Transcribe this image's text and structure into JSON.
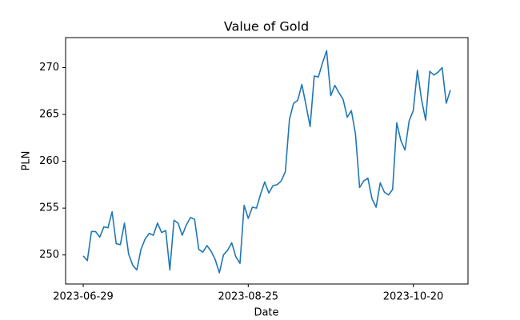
{
  "chart_data": {
    "type": "line",
    "title": "Value of Gold",
    "x_label": "Date",
    "y_label": "PLN",
    "categories": [
      "2023-06-29",
      null,
      null,
      null,
      null,
      null,
      null,
      null,
      null,
      null,
      null,
      null,
      null,
      null,
      null,
      null,
      null,
      null,
      null,
      null,
      null,
      null,
      null,
      null,
      null,
      null,
      null,
      null,
      null,
      null,
      null,
      null,
      null,
      null,
      null,
      null,
      null,
      null,
      null,
      null,
      "2023-08-25",
      null,
      null,
      null,
      null,
      null,
      null,
      null,
      null,
      null,
      null,
      null,
      null,
      null,
      null,
      null,
      null,
      null,
      null,
      null,
      null,
      null,
      null,
      null,
      null,
      null,
      null,
      null,
      null,
      null,
      null,
      null,
      null,
      null,
      null,
      null,
      null,
      null,
      null,
      null,
      "2023-10-20",
      null,
      null,
      null,
      null,
      null,
      null,
      null,
      null,
      null
    ],
    "series": [
      {
        "name": "Value",
        "color": "#1f77b4",
        "values": [
          249.9,
          249.4,
          252.5,
          252.5,
          251.9,
          253.0,
          252.9,
          254.6,
          251.2,
          251.1,
          253.4,
          250.1,
          248.9,
          248.4,
          250.6,
          251.7,
          252.3,
          252.1,
          253.4,
          252.4,
          252.6,
          248.4,
          253.7,
          253.4,
          252.1,
          253.2,
          254.0,
          253.8,
          250.6,
          250.3,
          251.0,
          250.4,
          249.5,
          248.1,
          250.0,
          250.5,
          251.3,
          249.8,
          249.1,
          255.3,
          253.9,
          255.1,
          255.0,
          256.5,
          257.8,
          256.6,
          257.4,
          257.5,
          257.9,
          258.9,
          264.5,
          266.2,
          266.5,
          268.2,
          266.0,
          263.7,
          269.1,
          269.0,
          270.5,
          271.8,
          267.0,
          268.1,
          267.3,
          266.6,
          264.7,
          265.4,
          262.9,
          257.2,
          257.9,
          258.2,
          256.0,
          255.1,
          257.7,
          256.7,
          256.4,
          257.0,
          264.1,
          262.2,
          261.2,
          264.3,
          265.4,
          269.7,
          266.6,
          264.4,
          269.6,
          269.2,
          269.5,
          270.0,
          266.2,
          267.6
        ]
      }
    ],
    "ylim": [
      246.9,
      273.2
    ],
    "yticks": [
      250,
      255,
      260,
      265,
      270
    ],
    "grid": false
  }
}
